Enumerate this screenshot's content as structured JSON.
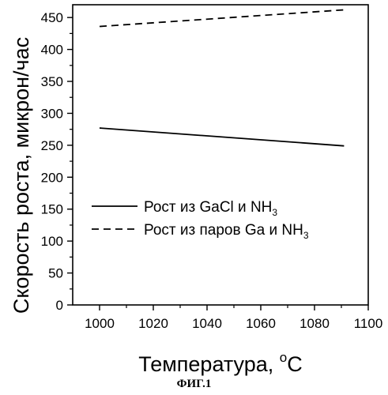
{
  "chart_data": {
    "type": "line",
    "xlabel": "Температура, °C",
    "xlabel_main": "Температура, ",
    "xlabel_sup": "o",
    "xlabel_unit": "C",
    "ylabel": "Скорость роста, микрон/час",
    "xlim": [
      990,
      1100
    ],
    "ylim": [
      0,
      470
    ],
    "xticks": [
      1000,
      1020,
      1040,
      1060,
      1080,
      1100
    ],
    "yticks": [
      0,
      50,
      100,
      150,
      200,
      250,
      300,
      350,
      400,
      450
    ],
    "grid": false,
    "legend_position": "center-left",
    "series": [
      {
        "name": "Рост из GaCl и NH3",
        "name_main": "Рост из GaCl и NH",
        "name_sub": "3",
        "style": "solid",
        "x": [
          1000,
          1091
        ],
        "y": [
          277,
          249
        ]
      },
      {
        "name": "Рост из паров Ga и NH3",
        "name_main": "Рост из паров Ga и NH",
        "name_sub": "3",
        "style": "dashed",
        "x": [
          1000,
          1091
        ],
        "y": [
          436,
          462
        ]
      }
    ]
  },
  "caption": "ФИГ.1"
}
